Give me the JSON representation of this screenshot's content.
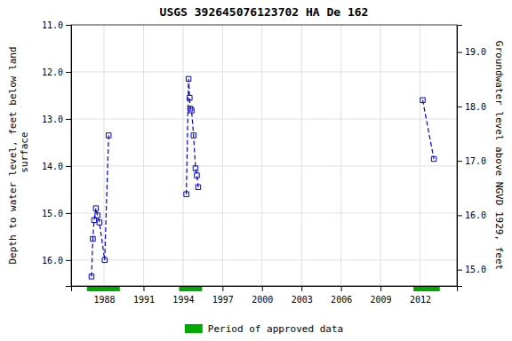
{
  "chart_data": {
    "type": "line",
    "title": "USGS 392645076123702 HA De 162",
    "ylabel": "Depth to water level, feet below land\n surface",
    "y2label": "Groundwater level above NGVD 1929, feet",
    "xlim": [
      1985.5,
      2014.8
    ],
    "xticks": [
      1988,
      1991,
      1994,
      1997,
      2000,
      2003,
      2006,
      2009,
      2012
    ],
    "ylim": [
      16.55,
      11.0
    ],
    "yticks": [
      {
        "value": 11.0,
        "label": "11.0"
      },
      {
        "value": 12.0,
        "label": "12.0"
      },
      {
        "value": 13.0,
        "label": "13.0"
      },
      {
        "value": 14.0,
        "label": "14.0"
      },
      {
        "value": 15.0,
        "label": "15.0"
      },
      {
        "value": 16.0,
        "label": "16.0"
      }
    ],
    "y2lim": [
      14.7,
      19.5
    ],
    "y2ticks": [
      {
        "value": 19.0,
        "label": "19.0"
      },
      {
        "value": 18.0,
        "label": "18.0"
      },
      {
        "value": 17.0,
        "label": "17.0"
      },
      {
        "value": 16.0,
        "label": "16.0"
      },
      {
        "value": 15.0,
        "label": "15.0"
      }
    ],
    "grid": true,
    "series": [
      {
        "x": [
          1987.05,
          1987.15,
          1987.25,
          1987.38,
          1987.5,
          1987.65,
          1988.05,
          1988.35
        ],
        "values": [
          16.35,
          15.55,
          15.15,
          14.9,
          15.05,
          15.2,
          16.0,
          13.35
        ],
        "color": "#0000cc",
        "marker": "square",
        "line_style": "dashed"
      },
      {
        "x": [
          1994.25,
          1994.42,
          1994.5,
          1994.55,
          1994.65,
          1994.8,
          1994.95,
          1995.05,
          1995.15
        ],
        "values": [
          14.6,
          12.15,
          12.55,
          12.78,
          12.82,
          13.35,
          14.05,
          14.2,
          14.45
        ],
        "color": "#0000cc",
        "marker": "square",
        "line_style": "dashed"
      },
      {
        "x": [
          2012.2,
          2013.05
        ],
        "values": [
          12.6,
          13.85
        ],
        "color": "#0000cc",
        "marker": "square",
        "line_style": "dashed"
      }
    ],
    "approved_periods": {
      "name": "Period of approved data",
      "color": "#00aa00",
      "ranges": [
        [
          1986.7,
          1989.2
        ],
        [
          1993.7,
          1995.45
        ],
        [
          2011.5,
          2013.5
        ]
      ]
    }
  }
}
